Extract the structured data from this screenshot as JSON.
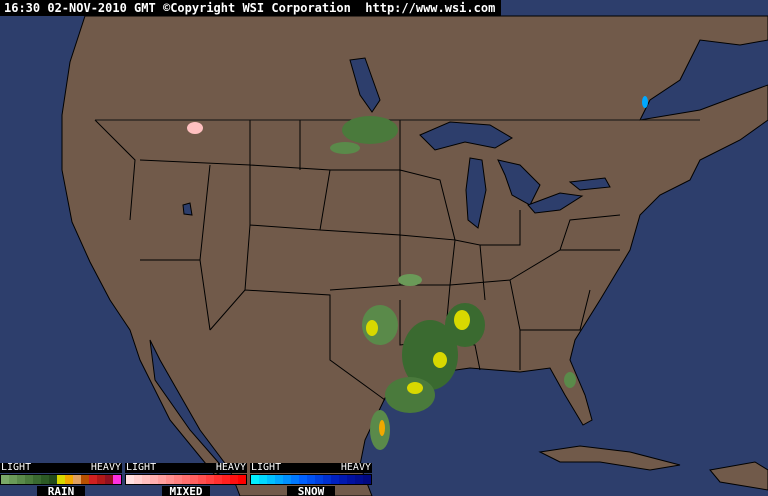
{
  "header": {
    "time": "16:30",
    "date": "02-NOV-2010 GMT",
    "copyright": "©Copyright WSI Corporation",
    "url": "http://www.wsi.com"
  },
  "colors": {
    "ocean": "#2d3e6c",
    "land": "#715a4a",
    "border": "#000000"
  },
  "legend": [
    {
      "name": "RAIN",
      "light": "LIGHT",
      "heavy": "HEAVY",
      "colors": [
        "#7aa868",
        "#6a9a58",
        "#5a8a4a",
        "#4a7a3c",
        "#3a6a30",
        "#2c5a24",
        "#224a1a",
        "#d8d800",
        "#f0a800",
        "#e0a060",
        "#b85000",
        "#d02020",
        "#b01818",
        "#901020",
        "#ff30e0"
      ]
    },
    {
      "name": "MIXED",
      "light": "LIGHT",
      "heavy": "HEAVY",
      "colors": [
        "#ffe0e0",
        "#ffd0d0",
        "#ffc0c0",
        "#ffb0b0",
        "#ffa0a0",
        "#ff9090",
        "#ff8080",
        "#ff7070",
        "#ff6060",
        "#ff5050",
        "#ff4040",
        "#ff3030",
        "#ff2020",
        "#ff1010",
        "#ff0000"
      ]
    },
    {
      "name": "SNOW",
      "light": "LIGHT",
      "heavy": "HEAVY",
      "colors": [
        "#00f0ff",
        "#00d8ff",
        "#00c0ff",
        "#00a8ff",
        "#0090ff",
        "#0078ff",
        "#0060ff",
        "#0050f0",
        "#0040e0",
        "#0030d0",
        "#0020c0",
        "#0018b0",
        "#0010a0",
        "#000c90",
        "#000880"
      ]
    }
  ]
}
